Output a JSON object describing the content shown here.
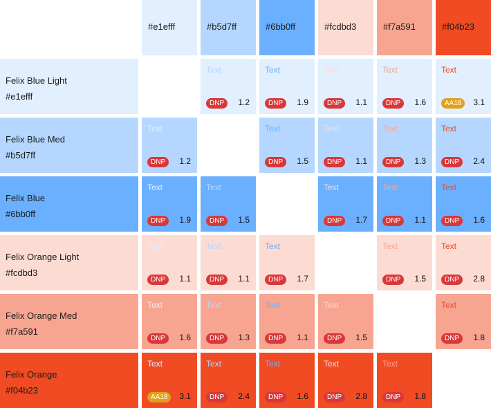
{
  "columns": [
    {
      "label": "#e1efff",
      "color": "#e1efff"
    },
    {
      "label": "#b5d7ff",
      "color": "#b5d7ff"
    },
    {
      "label": "#6bb0ff",
      "color": "#6bb0ff"
    },
    {
      "label": "#fcdbd3",
      "color": "#fcdbd3"
    },
    {
      "label": "#f7a591",
      "color": "#f7a591"
    },
    {
      "label": "#f04b23",
      "color": "#f04b23"
    }
  ],
  "rows": [
    {
      "name": "Felix Blue Light",
      "hex": "#e1efff",
      "color": "#e1efff",
      "cells": [
        null,
        {
          "text": "Text",
          "badge": "DNP",
          "ratio": "1.2"
        },
        {
          "text": "Text",
          "badge": "DNP",
          "ratio": "1.9"
        },
        {
          "text": "Text",
          "badge": "DNP",
          "ratio": "1.1"
        },
        {
          "text": "Text",
          "badge": "DNP",
          "ratio": "1.6"
        },
        {
          "text": "Text",
          "badge": "AA18",
          "ratio": "3.1"
        }
      ]
    },
    {
      "name": "Felix Blue Med",
      "hex": "#b5d7ff",
      "color": "#b5d7ff",
      "cells": [
        {
          "text": "Text",
          "badge": "DNP",
          "ratio": "1.2"
        },
        null,
        {
          "text": "Text",
          "badge": "DNP",
          "ratio": "1.5"
        },
        {
          "text": "Text",
          "badge": "DNP",
          "ratio": "1.1"
        },
        {
          "text": "Text",
          "badge": "DNP",
          "ratio": "1.3"
        },
        {
          "text": "Text",
          "badge": "DNP",
          "ratio": "2.4"
        }
      ]
    },
    {
      "name": "Felix Blue",
      "hex": "#6bb0ff",
      "color": "#6bb0ff",
      "cells": [
        {
          "text": "Text",
          "badge": "DNP",
          "ratio": "1.9"
        },
        {
          "text": "Text",
          "badge": "DNP",
          "ratio": "1.5"
        },
        null,
        {
          "text": "Text",
          "badge": "DNP",
          "ratio": "1.7"
        },
        {
          "text": "Text",
          "badge": "DNP",
          "ratio": "1.1"
        },
        {
          "text": "Text",
          "badge": "DNP",
          "ratio": "1.6"
        }
      ]
    },
    {
      "name": "Felix Orange Light",
      "hex": "#fcdbd3",
      "color": "#fcdbd3",
      "cells": [
        {
          "text": "Text",
          "badge": "DNP",
          "ratio": "1.1"
        },
        {
          "text": "Text",
          "badge": "DNP",
          "ratio": "1.1"
        },
        {
          "text": "Text",
          "badge": "DNP",
          "ratio": "1.7"
        },
        null,
        {
          "text": "Text",
          "badge": "DNP",
          "ratio": "1.5"
        },
        {
          "text": "Text",
          "badge": "DNP",
          "ratio": "2.8"
        }
      ]
    },
    {
      "name": "Felix Orange Med",
      "hex": "#f7a591",
      "color": "#f7a591",
      "cells": [
        {
          "text": "Text",
          "badge": "DNP",
          "ratio": "1.6"
        },
        {
          "text": "Text",
          "badge": "DNP",
          "ratio": "1.3"
        },
        {
          "text": "Text",
          "badge": "DNP",
          "ratio": "1.1"
        },
        {
          "text": "Text",
          "badge": "DNP",
          "ratio": "1.5"
        },
        null,
        {
          "text": "Text",
          "badge": "DNP",
          "ratio": "1.8"
        }
      ]
    },
    {
      "name": "Felix Orange",
      "hex": "#f04b23",
      "color": "#f04b23",
      "cells": [
        {
          "text": "Text",
          "badge": "AA18",
          "ratio": "3.1"
        },
        {
          "text": "Text",
          "badge": "DNP",
          "ratio": "2.4"
        },
        {
          "text": "Text",
          "badge": "DNP",
          "ratio": "1.6"
        },
        {
          "text": "Text",
          "badge": "DNP",
          "ratio": "2.8"
        },
        {
          "text": "Text",
          "badge": "DNP",
          "ratio": "1.8"
        },
        null
      ]
    }
  ]
}
